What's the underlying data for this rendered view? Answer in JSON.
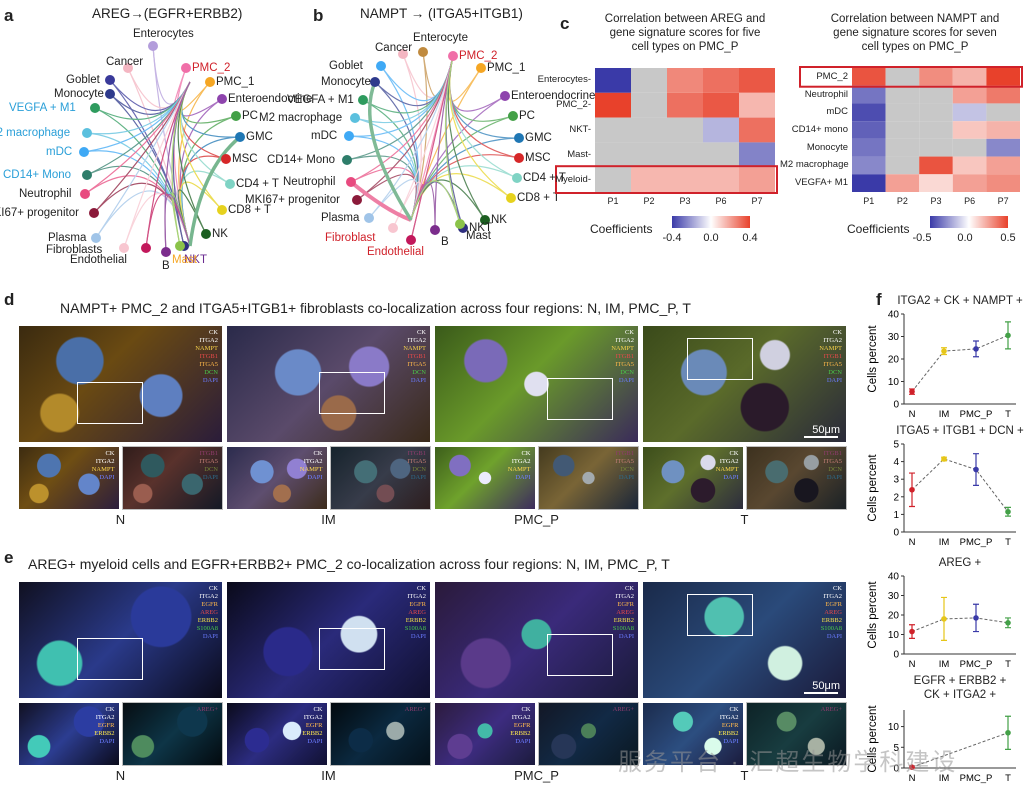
{
  "panels": {
    "a": {
      "letter": "a",
      "title": "AREG→(EGFR+ERBB2)"
    },
    "b": {
      "letter": "b",
      "title": "NAMPT → (ITGA5+ITGB1)"
    },
    "c": {
      "letter": "c",
      "left_title_1": "Correlation between AREG and",
      "left_title_2": "gene signature scores for five",
      "left_title_3": "cell types on PMC_P",
      "right_title_1": "Correlation between NAMPT and",
      "right_title_2": "gene signature scores for seven",
      "right_title_3": "cell types on PMC_P",
      "coef_label": "Coefficients"
    },
    "d": {
      "letter": "d",
      "title": "NAMPT+ PMC_2 and ITGA5+ITGB1+ fibroblasts co-localization across four regions: N, IM, PMC_P, T"
    },
    "e": {
      "letter": "e",
      "title": "AREG+ myeloid cells and EGFR+ERBB2+ PMC_2  co-localization across four regions: N, IM, PMC_P, T"
    },
    "f": {
      "letter": "f"
    }
  },
  "colors": {
    "orange_label": "#f5a623",
    "red_label": "#d0212a",
    "blue_label": "#2a9fd8",
    "purple_label": "#6a2b90",
    "heat_blue": "#3a3aa8",
    "heat_red": "#e8412b",
    "heat_gray": "#c8c8c8",
    "highlight_box": "#d0212a"
  },
  "nodes_a": [
    {
      "label": "Enterocytes",
      "color": "#b39ddb",
      "text_color": "#222"
    },
    {
      "label": "Cancer",
      "color": "#f4b6c2",
      "text_color": "#222"
    },
    {
      "label": "PMC_2",
      "color": "#f06fa8",
      "text_color": "#d0212a"
    },
    {
      "label": "PMC_1",
      "color": "#f5a623",
      "text_color": "#222"
    },
    {
      "label": "Goblet",
      "color": "#3a3a9a",
      "text_color": "#222"
    },
    {
      "label": "Enteroendocrine",
      "color": "#8e44ad",
      "text_color": "#222"
    },
    {
      "label": "Monocyte",
      "color": "#2e3a8c",
      "text_color": "#222"
    },
    {
      "label": "PC",
      "color": "#43a047",
      "text_color": "#222"
    },
    {
      "label": "VEGFA + M1",
      "color": "#2e9b5e",
      "text_color": "#2a9fd8"
    },
    {
      "label": "GMC",
      "color": "#1f77b4",
      "text_color": "#222"
    },
    {
      "label": "M2 macrophage",
      "color": "#5bc0de",
      "text_color": "#2a9fd8"
    },
    {
      "label": "MSC",
      "color": "#d62728",
      "text_color": "#222"
    },
    {
      "label": "mDC",
      "color": "#3fa9f5",
      "text_color": "#2a9fd8"
    },
    {
      "label": "CD14+ Mono",
      "color": "#2e7d6a",
      "text_color": "#2a9fd8"
    },
    {
      "label": "CD4 + T",
      "color": "#7fd3c4",
      "text_color": "#222"
    },
    {
      "label": "Neutrophil",
      "color": "#e84a7f",
      "text_color": "#222"
    },
    {
      "label": "CD8 + T",
      "color": "#e6d21e",
      "text_color": "#222"
    },
    {
      "label": "MKI67+ progenitor",
      "color": "#8b1a3a",
      "text_color": "#222"
    },
    {
      "label": "NK",
      "color": "#1b5e20",
      "text_color": "#222"
    },
    {
      "label": "Plasma",
      "color": "#a0c4e8",
      "text_color": "#222"
    },
    {
      "label": "Fibroblasts",
      "color": "#f8c6d0",
      "text_color": "#222"
    },
    {
      "label": "NKT",
      "color": "#2f2f7f",
      "text_color": "#6a2b90"
    },
    {
      "label": "Endothelial",
      "color": "#c2185b",
      "text_color": "#222"
    },
    {
      "label": "Mast",
      "color": "#8bc34a",
      "text_color": "#f5a623"
    },
    {
      "label": "B",
      "color": "#7b2c8c",
      "text_color": "#222"
    }
  ],
  "nodes_b": [
    {
      "label": "Cancer",
      "text_color": "#222"
    },
    {
      "label": "Enterocyte",
      "text_color": "#222"
    },
    {
      "label": "PMC_2",
      "text_color": "#d0212a"
    },
    {
      "label": "Goblet",
      "text_color": "#222"
    },
    {
      "label": "PMC_1",
      "text_color": "#222"
    },
    {
      "label": "Monocyte",
      "text_color": "#222"
    },
    {
      "label": "Enteroendocrine",
      "text_color": "#222"
    },
    {
      "label": "VEGFA + M1",
      "text_color": "#222"
    },
    {
      "label": "PC",
      "text_color": "#222"
    },
    {
      "label": "M2 macrophage",
      "text_color": "#222"
    },
    {
      "label": "GMC",
      "text_color": "#222"
    },
    {
      "label": "mDC",
      "text_color": "#222"
    },
    {
      "label": "MSC",
      "text_color": "#222"
    },
    {
      "label": "CD14+ Mono",
      "text_color": "#222"
    },
    {
      "label": "CD4 + T",
      "text_color": "#222"
    },
    {
      "label": "Neutrophil",
      "text_color": "#222"
    },
    {
      "label": "CD8 + T",
      "text_color": "#222"
    },
    {
      "label": "MKI67+ progenitor",
      "text_color": "#222"
    },
    {
      "label": "NK",
      "text_color": "#222"
    },
    {
      "label": "Plasma",
      "text_color": "#222"
    },
    {
      "label": "NKT",
      "text_color": "#222"
    },
    {
      "label": "Fibroblast",
      "text_color": "#d0212a"
    },
    {
      "label": "Endothelial",
      "text_color": "#d0212a"
    },
    {
      "label": "B",
      "text_color": "#222"
    },
    {
      "label": "Mast",
      "text_color": "#222"
    }
  ],
  "heat_left": {
    "rows": [
      "Enterocytes",
      "PMC_2",
      "NKT",
      "Mast",
      "Myeloid"
    ],
    "cols": [
      "P1",
      "P2",
      "P3",
      "P6",
      "P7"
    ],
    "values": [
      [
        -0.4,
        null,
        0.25,
        0.3,
        0.35
      ],
      [
        0.4,
        null,
        0.3,
        0.35,
        0.15
      ],
      [
        null,
        null,
        null,
        -0.15,
        0.3
      ],
      [
        null,
        null,
        null,
        null,
        -0.25
      ],
      [
        null,
        0.15,
        0.15,
        0.15,
        0.2
      ]
    ],
    "ticks": [
      "-0.4",
      "0.0",
      "0.4"
    ],
    "highlight_row": "Myeloid"
  },
  "heat_right": {
    "rows": [
      "PMC_2",
      "Neutrophil",
      "mDC",
      "CD14+ mono",
      "Monocyte",
      "M2 macrophage",
      "VEGFA+ M1"
    ],
    "cols": [
      "P1",
      "P2",
      "P3",
      "P6",
      "P7"
    ],
    "values": [
      [
        0.45,
        null,
        0.3,
        0.2,
        0.5
      ],
      [
        -0.35,
        null,
        null,
        0.25,
        0.35
      ],
      [
        -0.45,
        null,
        null,
        -0.15,
        null
      ],
      [
        -0.4,
        null,
        null,
        0.15,
        0.2
      ],
      [
        -0.35,
        null,
        null,
        null,
        -0.3
      ],
      [
        -0.3,
        null,
        0.45,
        0.15,
        0.25
      ],
      [
        -0.5,
        0.25,
        0.1,
        0.25,
        0.3
      ]
    ],
    "ticks": [
      "-0.5",
      "0.0",
      "0.5"
    ],
    "highlight_row": "PMC_2"
  },
  "panel_d": {
    "regions": [
      "N",
      "IM",
      "PMC_P",
      "T"
    ],
    "stains_top": [
      "CK",
      "ITGA2",
      "NAMPT",
      "ITGB1",
      "ITGA5",
      "DCN",
      "DAPI"
    ],
    "stains_bottom_left": [
      "CK",
      "ITGA2",
      "NAMPT",
      "DAPI"
    ],
    "stains_bottom_right": [
      "ITGB1",
      "ITGA5",
      "DCN",
      "DAPI"
    ],
    "scale": "50μm"
  },
  "panel_e": {
    "regions": [
      "N",
      "IM",
      "PMC_P",
      "T"
    ],
    "stains_top": [
      "CK",
      "ITGA2",
      "EGFR",
      "AREG",
      "ERBB2",
      "S100A8",
      "DAPI"
    ],
    "stains_bottom_left": [
      "CK",
      "ITGA2",
      "EGFR",
      "ERBB2",
      "DAPI"
    ],
    "stains_bottom_right": [
      "AREG+"
    ],
    "scale": "50μm"
  },
  "watermark": "服务平台 · 汇超生物学科建设",
  "chart_data": [
    {
      "type": "line",
      "title": "ITGA2 + CK + NAMPT +",
      "categories": [
        "N",
        "IM",
        "PMC_P",
        "T"
      ],
      "values": [
        5.5,
        23.5,
        24.5,
        30.5
      ],
      "errors": [
        1.2,
        1.5,
        3.5,
        6.0
      ],
      "colors": [
        "#d0212a",
        "#e6c619",
        "#3a3aa8",
        "#43a047"
      ],
      "ylabel": "Cells percent",
      "ylim": [
        0,
        40
      ],
      "yticks": [
        0,
        10,
        20,
        30,
        40
      ]
    },
    {
      "type": "line",
      "title": "ITGA5 + ITGB1 + DCN +",
      "categories": [
        "N",
        "IM",
        "PMC_P",
        "T"
      ],
      "values": [
        2.4,
        4.15,
        3.55,
        1.15
      ],
      "errors": [
        0.95,
        0.1,
        0.9,
        0.25
      ],
      "colors": [
        "#d0212a",
        "#e6c619",
        "#3a3aa8",
        "#43a047"
      ],
      "ylabel": "Cells percent",
      "ylim": [
        0,
        5
      ],
      "yticks": [
        0,
        1,
        2,
        3,
        4,
        5
      ]
    },
    {
      "type": "line",
      "title": "AREG +",
      "categories": [
        "N",
        "IM",
        "PMC_P",
        "T"
      ],
      "values": [
        11.5,
        18.0,
        18.5,
        16.0
      ],
      "errors": [
        3.5,
        11.0,
        7.0,
        2.5
      ],
      "colors": [
        "#d0212a",
        "#e6c619",
        "#3a3aa8",
        "#43a047"
      ],
      "ylabel": "Cells percent",
      "ylim": [
        0,
        40
      ],
      "yticks": [
        0,
        10,
        20,
        30,
        40
      ]
    },
    {
      "type": "line",
      "title_1": "EGFR + ERBB2 +",
      "title_2": "CK + ITGA2 +",
      "categories": [
        "N",
        "IM",
        "PMC_P",
        "T"
      ],
      "values": [
        0.2,
        null,
        null,
        8.5
      ],
      "errors": [
        0.3,
        null,
        null,
        4.0
      ],
      "colors": [
        "#d0212a",
        "#e6c619",
        "#3a3aa8",
        "#43a047"
      ],
      "ylabel": "Cells percent",
      "ylim": [
        0,
        14
      ],
      "yticks": [
        0,
        5,
        10
      ]
    }
  ]
}
